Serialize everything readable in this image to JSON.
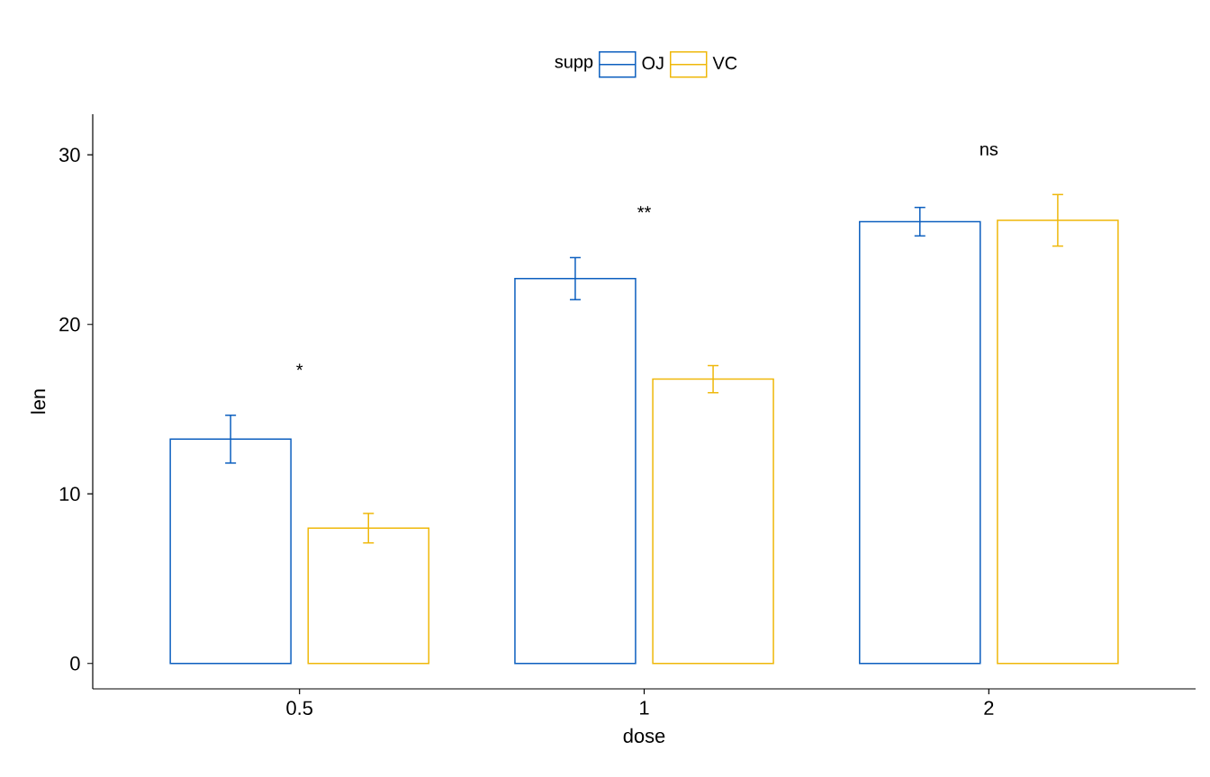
{
  "chart_data": {
    "type": "bar",
    "xlabel": "dose",
    "ylabel": "len",
    "legend_title": "supp",
    "legend": "top",
    "categories": [
      "0.5",
      "1",
      "2"
    ],
    "series": [
      {
        "name": "OJ",
        "color": "#0c5fbf",
        "values": [
          13.23,
          22.7,
          26.06
        ],
        "errors": [
          1.41,
          1.24,
          0.84
        ]
      },
      {
        "name": "VC",
        "color": "#efb80a",
        "values": [
          7.98,
          16.77,
          26.14
        ],
        "errors": [
          0.87,
          0.8,
          1.52
        ]
      }
    ],
    "ylim": [
      -1.5,
      32.4
    ],
    "yticks": [
      0,
      10,
      20,
      30
    ],
    "grid": false,
    "annotations": [
      "*",
      "**",
      "ns"
    ]
  }
}
